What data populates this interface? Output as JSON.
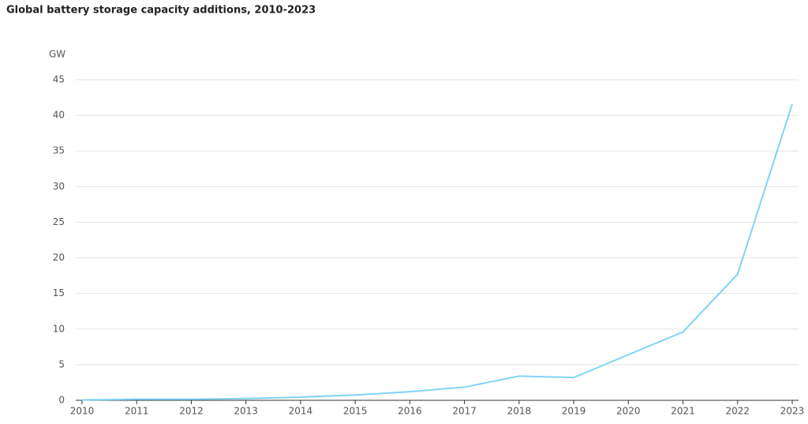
{
  "chart_data": {
    "type": "line",
    "title": "Global battery storage capacity additions, 2010-2023",
    "y_label": "GW",
    "categories": [
      "2010",
      "2011",
      "2012",
      "2013",
      "2014",
      "2015",
      "2016",
      "2017",
      "2018",
      "2019",
      "2020",
      "2021",
      "2022",
      "2023"
    ],
    "values": [
      0.05,
      0.15,
      0.15,
      0.25,
      0.45,
      0.75,
      1.2,
      1.85,
      3.4,
      3.2,
      6.4,
      9.6,
      17.7,
      41.6
    ],
    "color": "#7fd4f6",
    "ylim": [
      0,
      45
    ],
    "yticks": [
      0,
      5,
      10,
      15,
      20,
      25,
      30,
      35,
      40,
      45
    ],
    "grid": true
  }
}
